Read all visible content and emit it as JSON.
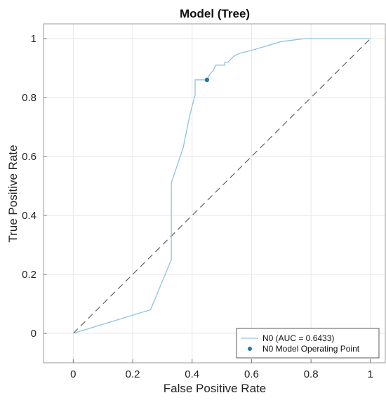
{
  "chart_data": {
    "type": "line",
    "title": "Model (Tree)",
    "xlabel": "False Positive Rate",
    "ylabel": "True Positive Rate",
    "xlim": [
      -0.1,
      1.05
    ],
    "ylim": [
      -0.1,
      1.05
    ],
    "xticks": [
      "0",
      "0.2",
      "0.4",
      "0.6",
      "0.8",
      "1"
    ],
    "yticks": [
      "0",
      "0.2",
      "0.4",
      "0.6",
      "0.8",
      "1"
    ],
    "grid": true,
    "legend_placement": "bottom-right",
    "series": [
      {
        "name": "N0 (AUC = 0.6433)",
        "kind": "line",
        "color": "#8fc3df",
        "x": [
          0,
          0.26,
          0.33,
          0.33,
          0.35,
          0.37,
          0.38,
          0.39,
          0.4,
          0.41,
          0.41,
          0.43,
          0.44,
          0.45,
          0.46,
          0.47,
          0.48,
          0.49,
          0.51,
          0.51,
          0.52,
          0.53,
          0.54,
          0.56,
          0.6,
          0.7,
          0.78,
          1.0
        ],
        "y": [
          0,
          0.08,
          0.25,
          0.51,
          0.57,
          0.63,
          0.68,
          0.73,
          0.77,
          0.81,
          0.86,
          0.86,
          0.86,
          0.86,
          0.88,
          0.89,
          0.91,
          0.91,
          0.91,
          0.92,
          0.92,
          0.93,
          0.94,
          0.95,
          0.96,
          0.99,
          1.0,
          1.0
        ]
      },
      {
        "name": "N0 Model Operating Point",
        "kind": "point",
        "color": "#1f77b4",
        "x": [
          0.45
        ],
        "y": [
          0.86
        ]
      }
    ],
    "reference_line": {
      "x": [
        0,
        1
      ],
      "y": [
        0,
        1
      ],
      "style": "dashed",
      "color": "#555555"
    }
  }
}
